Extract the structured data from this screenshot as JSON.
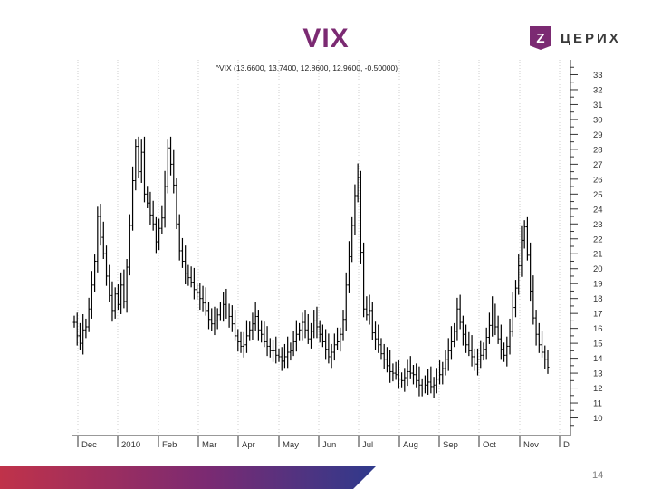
{
  "slide": {
    "title": "VIX",
    "logo_mark": "Z",
    "logo_text": "ЦЕРИХ",
    "page_number": "14",
    "accent_color": "#7b2a72",
    "footer_gradient": [
      "#c0324a",
      "#7b2a72",
      "#2f3a8c"
    ]
  },
  "chart_data": {
    "type": "line",
    "style": "bar-ohlc",
    "title": "",
    "legend_text": "^VIX (13.6600, 13.7400, 12.8600, 12.9600, -0.50000)",
    "ylim": [
      9,
      34
    ],
    "y_ticks": [
      10,
      11,
      12,
      13,
      14,
      15,
      16,
      17,
      18,
      19,
      20,
      21,
      22,
      23,
      24,
      25,
      26,
      27,
      28,
      29,
      30,
      31,
      32,
      33
    ],
    "y_tick_labels": [
      "10",
      "11",
      "12",
      "13",
      "14",
      "15",
      "16",
      "17",
      "18",
      "19",
      "20",
      "21",
      "22",
      "23",
      "24",
      "25",
      "26",
      "27",
      "28",
      "29",
      "30",
      "31",
      "32",
      "33"
    ],
    "month_labels": [
      "Dec",
      "2010",
      "Feb",
      "Mar",
      "Apr",
      "May",
      "Jun",
      "Jul",
      "Aug",
      "Sep",
      "Oct",
      "Nov",
      "D"
    ],
    "grid": "vertical",
    "series": [
      {
        "values": [
          16.4,
          15.5,
          15.0,
          15.9,
          16.1,
          17.3,
          18.9,
          20.5,
          23.5,
          22.1,
          21.0,
          19.5,
          18.2,
          17.2,
          18.3,
          17.6,
          18.9,
          17.8,
          20.1,
          22.9,
          25.9,
          28.2,
          26.5,
          27.8,
          25.0,
          24.4,
          23.6,
          23.0,
          21.8,
          22.7,
          23.4,
          25.5,
          28.1,
          27.0,
          25.6,
          23.0,
          21.2,
          20.5,
          19.7,
          19.4,
          19.1,
          18.6,
          18.4,
          18.0,
          17.7,
          17.2,
          16.6,
          16.3,
          16.5,
          16.9,
          17.1,
          17.6,
          17.1,
          16.8,
          16.3,
          15.5,
          15.1,
          14.8,
          14.9,
          15.5,
          15.9,
          16.3,
          16.8,
          15.9,
          15.6,
          15.1,
          14.8,
          14.5,
          14.5,
          14.2,
          14.1,
          13.8,
          14.1,
          14.4,
          14.5,
          15.1,
          15.6,
          15.9,
          16.4,
          15.9,
          15.3,
          15.8,
          16.5,
          16.1,
          15.6,
          15.1,
          14.6,
          14.1,
          14.4,
          14.9,
          15.1,
          15.6,
          16.6,
          18.9,
          20.8,
          22.9,
          24.9,
          26.1,
          21.1,
          17.3,
          16.9,
          17.2,
          15.7,
          15.3,
          14.9,
          14.3,
          13.9,
          13.5,
          13.1,
          13.0,
          12.9,
          12.6,
          12.5,
          12.7,
          13.1,
          13.0,
          12.9,
          12.5,
          12.2,
          12.0,
          12.2,
          12.4,
          12.1,
          12.2,
          12.6,
          12.9,
          13.3,
          13.9,
          14.5,
          15.1,
          15.8,
          17.3,
          16.4,
          15.6,
          14.9,
          14.5,
          14.1,
          13.6,
          13.9,
          14.2,
          14.6,
          15.4,
          16.2,
          17.1,
          16.1,
          15.3,
          14.6,
          14.2,
          14.8,
          15.8,
          17.4,
          18.7,
          20.2,
          21.9,
          22.8,
          20.9,
          18.5,
          16.7,
          15.6,
          14.9,
          14.4,
          13.9,
          13.4
        ]
      }
    ]
  }
}
